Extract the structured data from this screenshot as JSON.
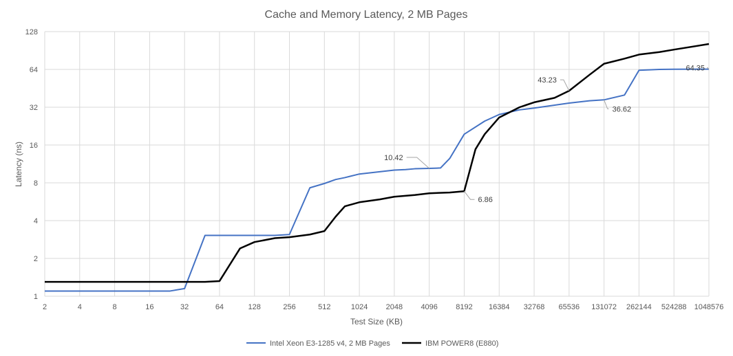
{
  "chart_data": {
    "type": "line",
    "title": "Cache and Memory Latency, 2 MB Pages",
    "xlabel": "Test Size (KB)",
    "ylabel": "Latency (ns)",
    "x_scale": "log2",
    "y_scale": "log2",
    "xlim": [
      2,
      1048576
    ],
    "ylim": [
      1,
      128
    ],
    "x_ticks": [
      "2",
      "4",
      "8",
      "16",
      "32",
      "64",
      "128",
      "256",
      "512",
      "1024",
      "2048",
      "4096",
      "8192",
      "16384",
      "32768",
      "65536",
      "131072",
      "262144",
      "524288",
      "1048576"
    ],
    "x_tick_values": [
      2,
      4,
      8,
      16,
      32,
      64,
      128,
      256,
      512,
      1024,
      2048,
      4096,
      8192,
      16384,
      32768,
      65536,
      131072,
      262144,
      524288,
      1048576
    ],
    "y_ticks": [
      "1",
      "2",
      "4",
      "8",
      "16",
      "32",
      "64",
      "128"
    ],
    "y_tick_values": [
      1,
      2,
      4,
      8,
      16,
      32,
      64,
      128
    ],
    "grid": true,
    "legend_position": "bottom",
    "series": [
      {
        "name": "Intel Xeon E3-1285 v4, 2 MB Pages",
        "color": "#4472c4",
        "points": [
          [
            2,
            1.1
          ],
          [
            4,
            1.1
          ],
          [
            8,
            1.1
          ],
          [
            16,
            1.1
          ],
          [
            24,
            1.1
          ],
          [
            32,
            1.15
          ],
          [
            48,
            3.05
          ],
          [
            64,
            3.05
          ],
          [
            96,
            3.05
          ],
          [
            128,
            3.05
          ],
          [
            192,
            3.05
          ],
          [
            256,
            3.1
          ],
          [
            384,
            7.3
          ],
          [
            512,
            7.9
          ],
          [
            640,
            8.5
          ],
          [
            768,
            8.8
          ],
          [
            1024,
            9.4
          ],
          [
            1536,
            9.8
          ],
          [
            2048,
            10.1
          ],
          [
            2560,
            10.2
          ],
          [
            3072,
            10.35
          ],
          [
            4096,
            10.42
          ],
          [
            5120,
            10.5
          ],
          [
            6144,
            12.5
          ],
          [
            8192,
            19.5
          ],
          [
            12288,
            24.8
          ],
          [
            16384,
            28
          ],
          [
            24576,
            30.5
          ],
          [
            32768,
            31.5
          ],
          [
            65536,
            34.5
          ],
          [
            98304,
            36.0
          ],
          [
            131072,
            36.62
          ],
          [
            196608,
            40.0
          ],
          [
            262144,
            63.0
          ],
          [
            393216,
            64.0
          ],
          [
            524288,
            64.2
          ],
          [
            1048576,
            64.35
          ]
        ]
      },
      {
        "name": "IBM POWER8 (E880)",
        "color": "#000000",
        "points": [
          [
            2,
            1.3
          ],
          [
            4,
            1.3
          ],
          [
            8,
            1.3
          ],
          [
            16,
            1.3
          ],
          [
            32,
            1.3
          ],
          [
            48,
            1.3
          ],
          [
            64,
            1.32
          ],
          [
            96,
            2.4
          ],
          [
            128,
            2.7
          ],
          [
            192,
            2.9
          ],
          [
            256,
            2.95
          ],
          [
            384,
            3.1
          ],
          [
            512,
            3.3
          ],
          [
            640,
            4.3
          ],
          [
            768,
            5.2
          ],
          [
            1024,
            5.6
          ],
          [
            1536,
            5.9
          ],
          [
            2048,
            6.2
          ],
          [
            3072,
            6.4
          ],
          [
            4096,
            6.6
          ],
          [
            6144,
            6.7
          ],
          [
            8192,
            6.86
          ],
          [
            10240,
            14.8
          ],
          [
            12288,
            19.5
          ],
          [
            16384,
            26.5
          ],
          [
            24576,
            32.0
          ],
          [
            32768,
            35.0
          ],
          [
            49152,
            38.0
          ],
          [
            65536,
            43.23
          ],
          [
            98304,
            58.0
          ],
          [
            131072,
            71.0
          ],
          [
            196608,
            78.0
          ],
          [
            262144,
            84.0
          ],
          [
            393216,
            88.0
          ],
          [
            524288,
            92.0
          ],
          [
            1048576,
            102.0
          ]
        ]
      }
    ],
    "annotations": [
      {
        "text": "10.42",
        "series": 0,
        "x": 4096,
        "y": 10.42
      },
      {
        "text": "6.86",
        "series": 1,
        "x": 8192,
        "y": 6.86
      },
      {
        "text": "43.23",
        "series": 1,
        "x": 65536,
        "y": 43.23
      },
      {
        "text": "36.62",
        "series": 0,
        "x": 131072,
        "y": 36.62
      },
      {
        "text": "64.35",
        "series": 0,
        "x": 1048576,
        "y": 64.35
      }
    ]
  }
}
